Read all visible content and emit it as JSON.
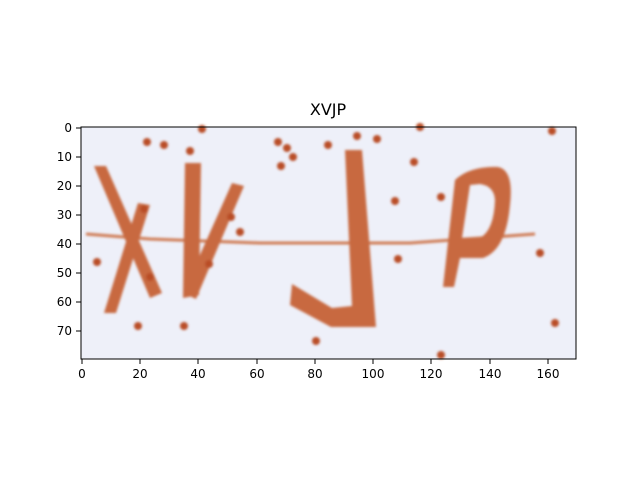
{
  "title": "XVJP",
  "colors": {
    "background": "#eef0f9",
    "glyph": "#c8693f",
    "noise": "#b94d25",
    "axis": "#000000"
  },
  "axes": {
    "xlim": [
      0,
      170
    ],
    "ylim": [
      80,
      0
    ],
    "xticks": [
      "0",
      "20",
      "40",
      "60",
      "80",
      "100",
      "120",
      "140",
      "160"
    ],
    "yticks": [
      "0",
      "10",
      "20",
      "30",
      "40",
      "50",
      "60",
      "70"
    ]
  }
}
